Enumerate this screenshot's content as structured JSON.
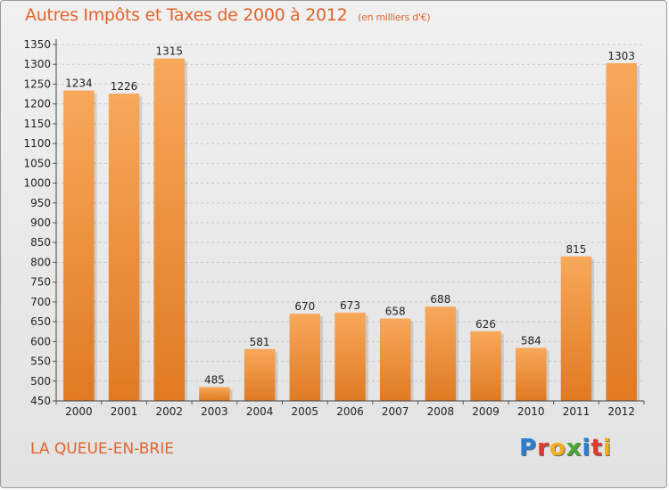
{
  "header": {
    "title": "Autres Impôts et Taxes de 2000 à 2012",
    "subtitle": "(en milliers d'€)"
  },
  "footer": {
    "city": "LA QUEUE-EN-BRIE",
    "logo_letters": [
      {
        "ch": "P",
        "color": "#2a7fd4"
      },
      {
        "ch": "r",
        "color": "#e23b2e"
      },
      {
        "ch": "o",
        "color": "#f2b01e"
      },
      {
        "ch": "x",
        "color": "#4aa832"
      },
      {
        "ch": "i",
        "color": "#2a7fd4"
      },
      {
        "ch": "t",
        "color": "#e23b2e"
      },
      {
        "ch": "i",
        "color": "#f2b01e"
      }
    ]
  },
  "chart_data": {
    "type": "bar",
    "title": "Autres Impôts et Taxes de 2000 à 2012",
    "subtitle": "(en milliers d'€)",
    "categories": [
      "2000",
      "2001",
      "2002",
      "2003",
      "2004",
      "2005",
      "2006",
      "2007",
      "2008",
      "2009",
      "2010",
      "2011",
      "2012"
    ],
    "values": [
      1234,
      1226,
      1315,
      485,
      581,
      670,
      673,
      658,
      688,
      626,
      584,
      815,
      1303
    ],
    "ylim": [
      450,
      1350
    ],
    "yticks": [
      450,
      500,
      550,
      600,
      650,
      700,
      750,
      800,
      850,
      900,
      950,
      1000,
      1050,
      1100,
      1150,
      1200,
      1250,
      1300,
      1350
    ],
    "grid": true,
    "bar_color_light": "#f7a85a",
    "bar_color_dark": "#e07a22"
  }
}
